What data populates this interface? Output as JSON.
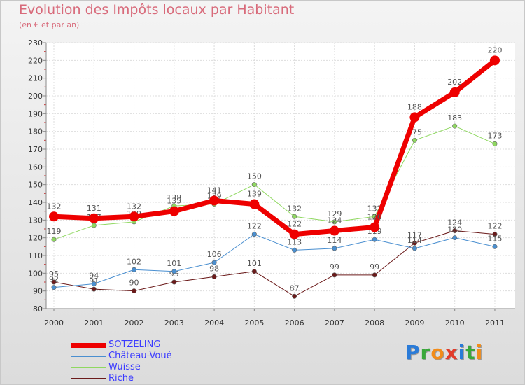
{
  "header": {
    "title": "Evolution des Impôts locaux par Habitant",
    "subtitle": "(en € et par an)"
  },
  "logo": {
    "text": "Proxiti",
    "letters": [
      {
        "char": "P",
        "color": "#2a7bd8"
      },
      {
        "char": "r",
        "color": "#39a83a"
      },
      {
        "char": "o",
        "color": "#f28c1a"
      },
      {
        "char": "x",
        "color": "#e23b2a"
      },
      {
        "char": "i",
        "color": "#2a7bd8"
      },
      {
        "char": "t",
        "color": "#39a83a"
      },
      {
        "char": "i",
        "color": "#f28c1a"
      }
    ]
  },
  "chart_data": {
    "type": "line",
    "title": "Evolution des Impôts locaux par Habitant",
    "subtitle": "(en € et par an)",
    "x": [
      "2000",
      "2001",
      "2002",
      "2003",
      "2004",
      "2005",
      "2006",
      "2007",
      "2008",
      "2009",
      "2010",
      "2011"
    ],
    "ylim": [
      80,
      230
    ],
    "yticks": [
      80,
      90,
      100,
      110,
      120,
      130,
      140,
      150,
      160,
      170,
      180,
      190,
      200,
      210,
      220,
      230
    ],
    "grid": true,
    "legend_position": "bottom-left",
    "series": [
      {
        "name": "Riche",
        "color": "#6b1a1a",
        "values": [
          95,
          91,
          90,
          95,
          98,
          101,
          87,
          99,
          99,
          117,
          124,
          122
        ],
        "width": 1
      },
      {
        "name": "Château-Voué",
        "color": "#4a8fd0",
        "values": [
          92,
          94,
          102,
          101,
          106,
          122,
          113,
          114,
          119,
          114,
          120,
          115
        ],
        "width": 1
      },
      {
        "name": "Wuisse",
        "color": "#8fd860",
        "values": [
          119,
          127,
          129,
          138,
          139,
          150,
          132,
          129,
          132,
          175,
          183,
          173
        ],
        "width": 1
      },
      {
        "name": "SOTZELING",
        "color": "#ee0000",
        "values": [
          132,
          131,
          132,
          135,
          141,
          139,
          122,
          124,
          126,
          188,
          202,
          220
        ],
        "width": 7
      }
    ],
    "legend_order": [
      "SOTZELING",
      "Château-Voué",
      "Wuisse",
      "Riche"
    ]
  }
}
